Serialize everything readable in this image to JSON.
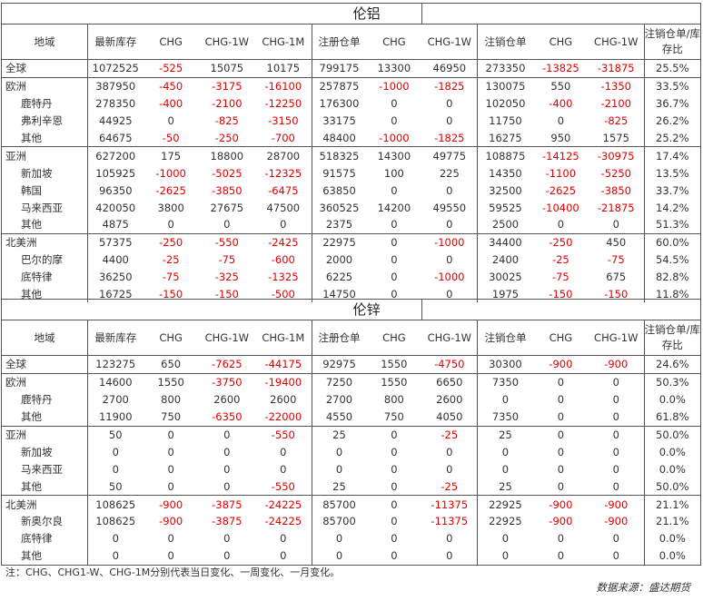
{
  "headers": [
    "地域",
    "最新库存",
    "CHG",
    "CHG-1W",
    "CHG-1M",
    "注册仓单",
    "CHG",
    "CHG-1W",
    "注销仓单",
    "CHG",
    "CHG-1W",
    "注销仓单/库存比"
  ],
  "sections": [
    {
      "title": "伦铝",
      "groups": [
        [
          {
            "name": "全球",
            "values": [
              "1072525",
              "-525",
              "15075",
              "10175",
              "799175",
              "13300",
              "46950",
              "273350",
              "-13825",
              "-31875",
              "25.5%"
            ]
          }
        ],
        [
          {
            "name": "欧洲",
            "values": [
              "387950",
              "-450",
              "-3175",
              "-16100",
              "257875",
              "-1000",
              "-1825",
              "130075",
              "550",
              "-1350",
              "33.5%"
            ]
          },
          {
            "name": "鹿特丹",
            "sub": true,
            "values": [
              "278350",
              "-400",
              "-2100",
              "-12250",
              "176300",
              "0",
              "0",
              "102050",
              "-400",
              "-2100",
              "36.7%"
            ]
          },
          {
            "name": "弗利辛恩",
            "sub": true,
            "values": [
              "44925",
              "0",
              "-825",
              "-3150",
              "33175",
              "0",
              "0",
              "11750",
              "0",
              "-825",
              "26.2%"
            ]
          },
          {
            "name": "其他",
            "sub": true,
            "values": [
              "64675",
              "-50",
              "-250",
              "-700",
              "48400",
              "-1000",
              "-1825",
              "16275",
              "950",
              "1575",
              "25.2%"
            ]
          }
        ],
        [
          {
            "name": "亚洲",
            "values": [
              "627200",
              "175",
              "18800",
              "28700",
              "518325",
              "14300",
              "49775",
              "108875",
              "-14125",
              "-30975",
              "17.4%"
            ]
          },
          {
            "name": "新加坡",
            "sub": true,
            "values": [
              "105925",
              "-1000",
              "-5025",
              "-12325",
              "91575",
              "100",
              "225",
              "14350",
              "-1100",
              "-5250",
              "13.5%"
            ]
          },
          {
            "name": "韩国",
            "sub": true,
            "values": [
              "96350",
              "-2625",
              "-3850",
              "-6475",
              "63850",
              "0",
              "0",
              "32500",
              "-2625",
              "-3850",
              "33.7%"
            ]
          },
          {
            "name": "马来西亚",
            "sub": true,
            "values": [
              "420050",
              "3800",
              "27675",
              "47500",
              "360525",
              "14200",
              "49550",
              "59525",
              "-10400",
              "-21875",
              "14.2%"
            ]
          },
          {
            "name": "其他",
            "sub": true,
            "values": [
              "4875",
              "0",
              "0",
              "0",
              "2375",
              "0",
              "0",
              "2500",
              "0",
              "0",
              "51.3%"
            ]
          }
        ],
        [
          {
            "name": "北美洲",
            "values": [
              "57375",
              "-250",
              "-550",
              "-2425",
              "22975",
              "0",
              "-1000",
              "34400",
              "-250",
              "450",
              "60.0%"
            ]
          },
          {
            "name": "巴尔的摩",
            "sub": true,
            "values": [
              "4400",
              "-25",
              "-75",
              "-600",
              "2000",
              "0",
              "0",
              "2400",
              "-25",
              "-75",
              "54.5%"
            ]
          },
          {
            "name": "底特律",
            "sub": true,
            "values": [
              "36250",
              "-75",
              "-325",
              "-1325",
              "6225",
              "0",
              "-1000",
              "30025",
              "-75",
              "675",
              "82.8%"
            ]
          },
          {
            "name": "其他",
            "sub": true,
            "values": [
              "16725",
              "-150",
              "-150",
              "-500",
              "14750",
              "0",
              "0",
              "1975",
              "-150",
              "-150",
              "11.8%"
            ]
          }
        ]
      ]
    },
    {
      "title": "伦锌",
      "groups": [
        [
          {
            "name": "全球",
            "values": [
              "123275",
              "650",
              "-7625",
              "-44175",
              "92975",
              "1550",
              "-4750",
              "30300",
              "-900",
              "-900",
              "24.6%"
            ]
          }
        ],
        [
          {
            "name": "欧洲",
            "values": [
              "14600",
              "1550",
              "-3750",
              "-19400",
              "7250",
              "1550",
              "6650",
              "7350",
              "0",
              "0",
              "50.3%"
            ]
          },
          {
            "name": "鹿特丹",
            "sub": true,
            "values": [
              "2700",
              "800",
              "2600",
              "2600",
              "2700",
              "800",
              "2600",
              "0",
              "0",
              "0",
              "0.0%"
            ]
          },
          {
            "name": "其他",
            "sub": true,
            "values": [
              "11900",
              "750",
              "-6350",
              "-22000",
              "4550",
              "750",
              "4050",
              "7350",
              "0",
              "0",
              "61.8%"
            ]
          }
        ],
        [
          {
            "name": "亚洲",
            "values": [
              "50",
              "0",
              "0",
              "-550",
              "25",
              "0",
              "-25",
              "25",
              "0",
              "0",
              "50.0%"
            ]
          },
          {
            "name": "新加坡",
            "sub": true,
            "values": [
              "0",
              "0",
              "0",
              "0",
              "0",
              "0",
              "0",
              "0",
              "0",
              "0",
              "0.0%"
            ]
          },
          {
            "name": "马来西亚",
            "sub": true,
            "values": [
              "0",
              "0",
              "0",
              "0",
              "0",
              "0",
              "0",
              "0",
              "0",
              "0",
              "0.0%"
            ]
          },
          {
            "name": "其他",
            "sub": true,
            "values": [
              "50",
              "0",
              "0",
              "-550",
              "25",
              "0",
              "-25",
              "25",
              "0",
              "0",
              "50.0%"
            ]
          }
        ],
        [
          {
            "name": "北美洲",
            "values": [
              "108625",
              "-900",
              "-3875",
              "-24225",
              "85700",
              "0",
              "-11375",
              "22925",
              "-900",
              "-900",
              "21.1%"
            ]
          },
          {
            "name": "新奥尔良",
            "sub": true,
            "values": [
              "108625",
              "-900",
              "-3875",
              "-24225",
              "85700",
              "0",
              "-11375",
              "22925",
              "-900",
              "-900",
              "21.1%"
            ]
          },
          {
            "name": "底特律",
            "sub": true,
            "values": [
              "0",
              "0",
              "0",
              "0",
              "0",
              "0",
              "0",
              "0",
              "0",
              "0",
              "0.0%"
            ]
          },
          {
            "name": "其他",
            "sub": true,
            "values": [
              "0",
              "0",
              "0",
              "0",
              "0",
              "0",
              "0",
              "0",
              "0",
              "0",
              "0.0%"
            ]
          }
        ]
      ]
    }
  ],
  "note": "注：CHG、CHG1-W、CHG-1M分别代表当日变化、一周变化、一月变化。",
  "source": "数据来源：盛达期货",
  "colors": {
    "negative": "#e00000",
    "text": "#333333",
    "border": "#555555"
  }
}
